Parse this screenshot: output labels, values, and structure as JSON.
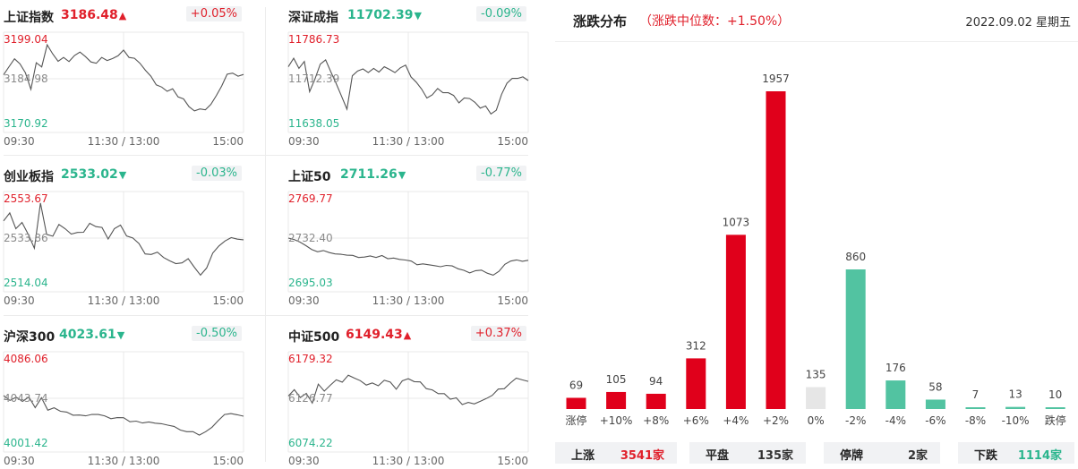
{
  "indices": [
    {
      "name": "上证指数",
      "value": "3186.48",
      "direction": "up",
      "change": "+0.05%",
      "high_label": "3199.04",
      "mid_label": "3184.98",
      "low_label": "3170.92",
      "x_labels": [
        "09:30",
        "11:30 / 13:00",
        "15:00"
      ],
      "chart_data": {
        "type": "line",
        "ylim": [
          3170.92,
          3199.04
        ],
        "prev_close": 3184.98,
        "values": [
          3186.4,
          3189.3,
          3192.1,
          3190.3,
          3187.1,
          3181.2,
          3190.7,
          3189.2,
          3197.1,
          3193.9,
          3191.2,
          3192.6,
          3191.1,
          3193.3,
          3194.5,
          3192.9,
          3191.0,
          3190.5,
          3192.6,
          3191.5,
          3192.2,
          3193.2,
          3195.2,
          3192.6,
          3192.3,
          3190.5,
          3188.0,
          3185.9,
          3182.8,
          3182.0,
          3180.5,
          3181.4,
          3178.5,
          3177.8,
          3175.0,
          3173.5,
          3174.2,
          3173.9,
          3175.8,
          3178.9,
          3182.4,
          3186.6,
          3187.0,
          3185.9,
          3186.5
        ]
      }
    },
    {
      "name": "深证成指",
      "value": "11702.39",
      "direction": "down",
      "change": "-0.09%",
      "high_label": "11786.73",
      "mid_label": "11712.39",
      "low_label": "11638.05",
      "x_labels": [
        "09:30",
        "11:30 / 13:00",
        "15:00"
      ],
      "chart_data": {
        "type": "line",
        "ylim": [
          11638.05,
          11786.73
        ],
        "prev_close": 11712.39,
        "values": [
          11735,
          11751,
          11732,
          11745,
          11688,
          11712,
          11740,
          11748,
          11725,
          11703,
          11679,
          11655,
          11718,
          11727,
          11731,
          11724,
          11732,
          11725,
          11735,
          11730,
          11724,
          11733,
          11738,
          11716,
          11706,
          11693,
          11676,
          11682,
          11694,
          11686,
          11686,
          11681,
          11667,
          11676,
          11675,
          11668,
          11657,
          11661,
          11646,
          11653,
          11683,
          11704,
          11713,
          11713,
          11716,
          11709
        ]
      }
    },
    {
      "name": "创业板指",
      "value": "2533.02",
      "direction": "down",
      "change": "-0.03%",
      "high_label": "2553.67",
      "mid_label": "2533.86",
      "low_label": "2514.04",
      "x_labels": [
        "09:30",
        "11:30 / 13:00",
        "15:00"
      ],
      "chart_data": {
        "type": "line",
        "ylim": [
          2514.04,
          2553.67
        ],
        "prev_close": 2533.86,
        "values": [
          2542.5,
          2546.5,
          2538.6,
          2541.7,
          2535.8,
          2528.7,
          2551.5,
          2535.7,
          2534.8,
          2540.7,
          2538.6,
          2535.9,
          2536.7,
          2536.8,
          2541.3,
          2539.6,
          2539.2,
          2533.4,
          2538.6,
          2540.4,
          2534.9,
          2533.9,
          2531.1,
          2525.9,
          2525.6,
          2526.8,
          2524.1,
          2522.4,
          2521.0,
          2521.4,
          2523.5,
          2519.2,
          2515.2,
          2518.8,
          2526.3,
          2529.9,
          2532.4,
          2534.1,
          2533.3,
          2533.0
        ]
      }
    },
    {
      "name": "上证50",
      "value": "2711.26",
      "direction": "down",
      "change": "-0.77%",
      "high_label": "2769.77",
      "mid_label": "2732.40",
      "low_label": "2695.03",
      "x_labels": [
        "09:30",
        "11:30 / 13:00",
        "15:00"
      ],
      "chart_data": {
        "type": "line",
        "ylim": [
          2695.03,
          2769.77
        ],
        "prev_close": 2732.4,
        "values": [
          2732.4,
          2731.0,
          2728.6,
          2725.3,
          2721.6,
          2719.4,
          2720.6,
          2718.6,
          2717.4,
          2717.0,
          2716.2,
          2716.0,
          2714.0,
          2714.4,
          2715.4,
          2714.0,
          2715.8,
          2712.9,
          2713.5,
          2712.2,
          2711.6,
          2710.6,
          2707.1,
          2707.9,
          2707.1,
          2706.2,
          2705.2,
          2706.5,
          2706.0,
          2703.3,
          2701.8,
          2699.4,
          2701.5,
          2702.0,
          2699.1,
          2697.2,
          2700.9,
          2707.5,
          2710.6,
          2711.7,
          2710.4,
          2711.3
        ]
      }
    },
    {
      "name": "沪深300",
      "value": "4023.61",
      "direction": "down",
      "change": "-0.50%",
      "high_label": "4086.06",
      "mid_label": "4043.74",
      "low_label": "4001.42",
      "x_labels": [
        "09:30",
        "11:30 / 13:00",
        "15:00"
      ],
      "chart_data": {
        "type": "line",
        "ylim": [
          4001.42,
          4086.06
        ],
        "prev_close": 4043.74,
        "values": [
          4046.7,
          4041.4,
          4044.9,
          4040.5,
          4045.2,
          4033.7,
          4044.3,
          4030.9,
          4033.5,
          4029.8,
          4028.9,
          4025.6,
          4025.8,
          4024.9,
          4026.4,
          4026.3,
          4024.9,
          4021.8,
          4023.0,
          4022.9,
          4018.5,
          4019.2,
          4017.2,
          4018.3,
          4017.0,
          4016.4,
          4014.9,
          4013.5,
          4009.6,
          4007.9,
          4007.9,
          4004.2,
          4007.9,
          4012.6,
          4019.8,
          4026.3,
          4027.3,
          4026.0,
          4024.5
        ]
      }
    },
    {
      "name": "中证500",
      "value": "6149.43",
      "direction": "up",
      "change": "+0.37%",
      "high_label": "6179.32",
      "mid_label": "6126.77",
      "low_label": "6074.22",
      "x_labels": [
        "09:30",
        "11:30 / 13:00",
        "15:00"
      ],
      "chart_data": {
        "type": "line",
        "ylim": [
          6074.22,
          6179.32
        ],
        "prev_close": 6126.77,
        "values": [
          6129.7,
          6138.2,
          6127.8,
          6133.3,
          6120.4,
          6145.6,
          6136.3,
          6144.2,
          6151.4,
          6148.3,
          6157.6,
          6153.8,
          6150.3,
          6144.5,
          6147.2,
          6143.5,
          6150.8,
          6148.4,
          6138.8,
          6150.0,
          6152.9,
          6149.0,
          6148.6,
          6139.7,
          6138.0,
          6133.0,
          6133.0,
          6125.6,
          6127.4,
          6118.4,
          6121.3,
          6119.2,
          6122.7,
          6126.4,
          6130.7,
          6139.1,
          6139.5,
          6147.1,
          6153.7,
          6151.4,
          6149.4
        ]
      }
    }
  ],
  "distribution": {
    "title": "涨跌分布",
    "subtitle": "（涨跌中位数：+1.50%）",
    "date": "2022.09.02  星期五",
    "chart_data": {
      "type": "bar",
      "categories": [
        "涨停",
        "+10%",
        "+8%",
        "+6%",
        "+4%",
        "+2%",
        "0%",
        "-2%",
        "-4%",
        "-6%",
        "-8%",
        "-10%",
        "跌停"
      ],
      "values": [
        69,
        105,
        94,
        312,
        1073,
        1957,
        135,
        860,
        176,
        58,
        7,
        13,
        10
      ],
      "bar_colors": [
        "#e0001b",
        "#e0001b",
        "#e0001b",
        "#e0001b",
        "#e0001b",
        "#e0001b",
        "#e6e6e6",
        "#52c3a1",
        "#52c3a1",
        "#52c3a1",
        "#52c3a1",
        "#52c3a1",
        "#52c3a1"
      ],
      "ylim": [
        0,
        1957
      ]
    },
    "summary": [
      {
        "label": "上涨",
        "value": "3541家",
        "color": "#e0202b"
      },
      {
        "label": "平盘",
        "value": "135家",
        "color": "#333333"
      },
      {
        "label": "停牌",
        "value": "2家",
        "color": "#333333"
      },
      {
        "label": "下跌",
        "value": "1114家",
        "color": "#2bb58d"
      }
    ]
  },
  "colors": {
    "up": "#e0202b",
    "down": "#2bb58d",
    "line": "#555555",
    "grid": "#e9e9e9"
  }
}
